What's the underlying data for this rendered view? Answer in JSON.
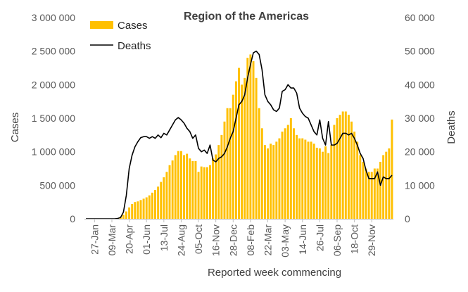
{
  "chart_data": {
    "type": "bar",
    "title": "Region of the Americas",
    "xlabel": "Reported week commencing",
    "ylabel_left": "Cases",
    "ylabel_right": "Deaths",
    "ylim_left": [
      0,
      3000000
    ],
    "ylim_right": [
      0,
      60000
    ],
    "left_ticks": [
      "0",
      "500 000",
      "1 000 000",
      "1 500 000",
      "2 000 000",
      "2 500 000",
      "3 000 000"
    ],
    "right_ticks": [
      "0",
      "10 000",
      "20 000",
      "30 000",
      "40 000",
      "50 000",
      "60 000"
    ],
    "x_tick_labels": [
      "27-Jan",
      "09-Mar",
      "20-Apr",
      "01-Jun",
      "13-Jul",
      "24-Aug",
      "05-Oct",
      "16-Nov",
      "28-Dec",
      "08-Feb",
      "22-Mar",
      "03-May",
      "14-Jun",
      "26-Jul",
      "06-Sep",
      "18-Oct",
      "29-Nov"
    ],
    "legend_position": "top-left",
    "colors": {
      "cases": "#ffc000",
      "deaths": "#000000"
    },
    "series": [
      {
        "name": "Cases",
        "kind": "bar",
        "axis": "left",
        "values": [
          0,
          0,
          0,
          0,
          0,
          0,
          0,
          0,
          0,
          0,
          0,
          5000,
          30000,
          60000,
          110000,
          170000,
          220000,
          250000,
          260000,
          280000,
          300000,
          320000,
          350000,
          390000,
          430000,
          480000,
          550000,
          620000,
          700000,
          800000,
          870000,
          950000,
          1010000,
          1010000,
          950000,
          970000,
          900000,
          860000,
          860000,
          700000,
          780000,
          770000,
          770000,
          800000,
          900000,
          960000,
          1100000,
          1250000,
          1450000,
          1650000,
          1650000,
          1850000,
          2050000,
          2250000,
          2000000,
          2100000,
          2400000,
          2450000,
          2350000,
          2100000,
          1650000,
          1350000,
          1100000,
          1050000,
          1120000,
          1100000,
          1150000,
          1200000,
          1300000,
          1350000,
          1400000,
          1500000,
          1350000,
          1250000,
          1200000,
          1200000,
          1180000,
          1150000,
          1150000,
          1120000,
          1060000,
          1050000,
          1000000,
          1080000,
          980000,
          1100000,
          1400000,
          1500000,
          1550000,
          1600000,
          1600000,
          1550000,
          1450000,
          1300000,
          1150000,
          950000,
          850000,
          750000,
          700000,
          700000,
          750000,
          750000,
          850000,
          950000,
          1000000,
          1050000,
          1480000
        ]
      },
      {
        "name": "Deaths",
        "kind": "line",
        "axis": "right",
        "values": [
          0,
          0,
          0,
          0,
          0,
          0,
          0,
          0,
          0,
          0,
          0,
          100,
          400,
          2000,
          7000,
          15000,
          19000,
          21500,
          23000,
          24200,
          24500,
          24500,
          24000,
          24500,
          24000,
          25000,
          24200,
          25500,
          25000,
          26500,
          28000,
          29500,
          30200,
          29500,
          28500,
          27000,
          26000,
          24000,
          25000,
          21000,
          20000,
          20500,
          19500,
          22000,
          17500,
          17000,
          18000,
          18500,
          19500,
          21500,
          24000,
          26000,
          30000,
          34000,
          35000,
          37000,
          42000,
          46000,
          49500,
          50000,
          49000,
          44500,
          37000,
          35000,
          34000,
          32500,
          32000,
          33000,
          38000,
          38500,
          40000,
          39000,
          39000,
          37500,
          33000,
          31500,
          30500,
          30000,
          28000,
          26000,
          25000,
          29500,
          24000,
          22000,
          29000,
          22000,
          22000,
          22500,
          24000,
          25500,
          25500,
          25000,
          25500,
          24000,
          22000,
          19500,
          18000,
          14500,
          12000,
          12000,
          12000,
          14000,
          10000,
          12500,
          12000,
          12000,
          13000
        ]
      }
    ]
  }
}
